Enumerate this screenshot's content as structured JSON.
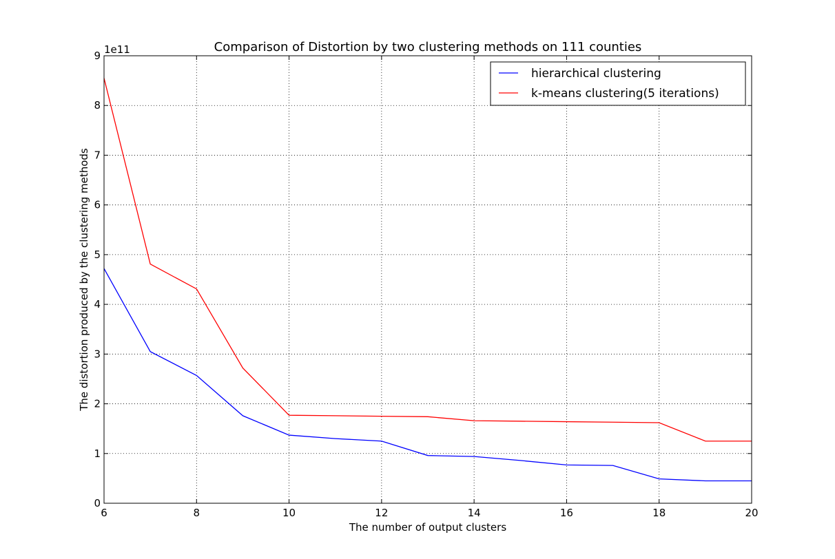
{
  "chart_data": {
    "type": "line",
    "title": "Comparison of Distortion by two clustering methods on 111 counties",
    "xlabel": "The number of output clusters",
    "ylabel": "The distortion produced by the clustering methods",
    "y_offset_label": "1e11",
    "xlim": [
      6,
      20
    ],
    "ylim": [
      0,
      9
    ],
    "x_ticks": [
      "6",
      "8",
      "10",
      "12",
      "14",
      "16",
      "18",
      "20"
    ],
    "y_ticks": [
      "0",
      "1",
      "2",
      "3",
      "4",
      "5",
      "6",
      "7",
      "8",
      "9"
    ],
    "grid": true,
    "legend_position": "top-right",
    "x": [
      6,
      7,
      8,
      9,
      10,
      11,
      12,
      13,
      14,
      15,
      16,
      17,
      18,
      19,
      20
    ],
    "series": [
      {
        "name": "hierarchical clustering",
        "color": "#0000ff",
        "values": [
          4.72,
          3.05,
          2.57,
          1.76,
          1.37,
          1.3,
          1.25,
          0.96,
          0.94,
          0.86,
          0.77,
          0.76,
          0.49,
          0.45,
          0.45
        ]
      },
      {
        "name": "k-means clustering(5 iterations)",
        "color": "#ff0000",
        "values": [
          8.55,
          4.81,
          4.31,
          2.72,
          1.77,
          1.76,
          1.75,
          1.74,
          1.66,
          1.65,
          1.64,
          1.63,
          1.62,
          1.25,
          1.25
        ]
      }
    ]
  }
}
